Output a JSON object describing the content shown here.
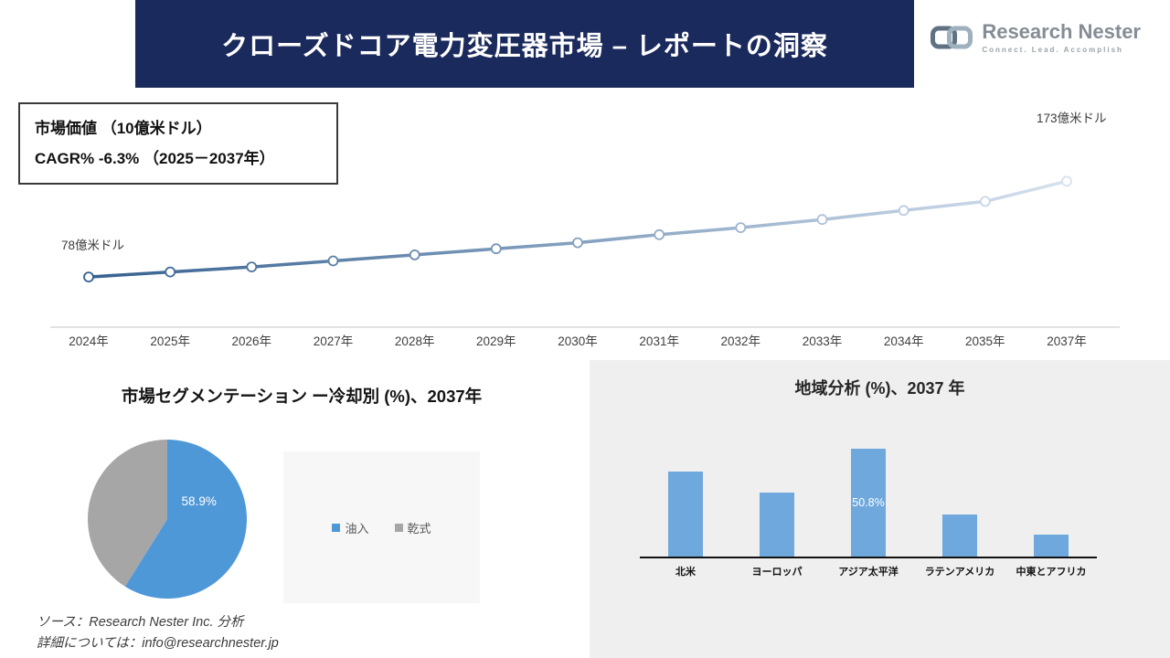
{
  "header": {
    "title": "クローズドコア電力変圧器市場 – レポートの洞察",
    "logo_name": "Research Nester",
    "logo_tagline": "Connect. Lead. Accomplish"
  },
  "info_box": {
    "line1": "市場価値 （10億米ドル）",
    "line2": "CAGR% -6.3% （2025－2037年）"
  },
  "chart_data": [
    {
      "type": "line",
      "title": "市場価値 （10億米ドル）",
      "categories": [
        "2024年",
        "2025年",
        "2026年",
        "2027年",
        "2028年",
        "2029年",
        "2030年",
        "2031年",
        "2032年",
        "2033年",
        "2034年",
        "2035年",
        "2037年"
      ],
      "values": [
        78,
        83,
        88,
        94,
        100,
        106,
        112,
        120,
        127,
        135,
        144,
        153,
        173
      ],
      "ylim": [
        60,
        205
      ],
      "start_label": "78億米ドル",
      "end_label": "173億米ドル",
      "color_start": "#35618f",
      "color_end": "#d6e1ef",
      "axis_color": "#d9d9d9",
      "legend_position": "none",
      "grid": false
    },
    {
      "type": "pie",
      "title": "市場セグメンテーション ー冷却別 (%)、2037年",
      "labels": [
        "油入",
        "乾式"
      ],
      "values": [
        58.9,
        41.1
      ],
      "colors": [
        "#4f98d8",
        "#a6a6a6"
      ],
      "shown_label": {
        "index": 0,
        "text": "58.9%"
      },
      "legend_position": "right"
    },
    {
      "type": "bar",
      "title": "地域分析 (%)、2037 年",
      "categories": [
        "北米",
        "ヨーロッパ",
        "アジア太平洋",
        "ラテンアメリカ",
        "中東とアフリカ"
      ],
      "values": [
        40,
        30,
        50.8,
        20,
        10.5
      ],
      "bar_color": "#6fa8dc",
      "shown_label": {
        "index": 2,
        "text": "50.8%"
      },
      "grid": false
    }
  ],
  "footer": {
    "source": "ソース：Research Nester Inc. 分析",
    "contact": "詳細については：info@researchnester.jp"
  }
}
